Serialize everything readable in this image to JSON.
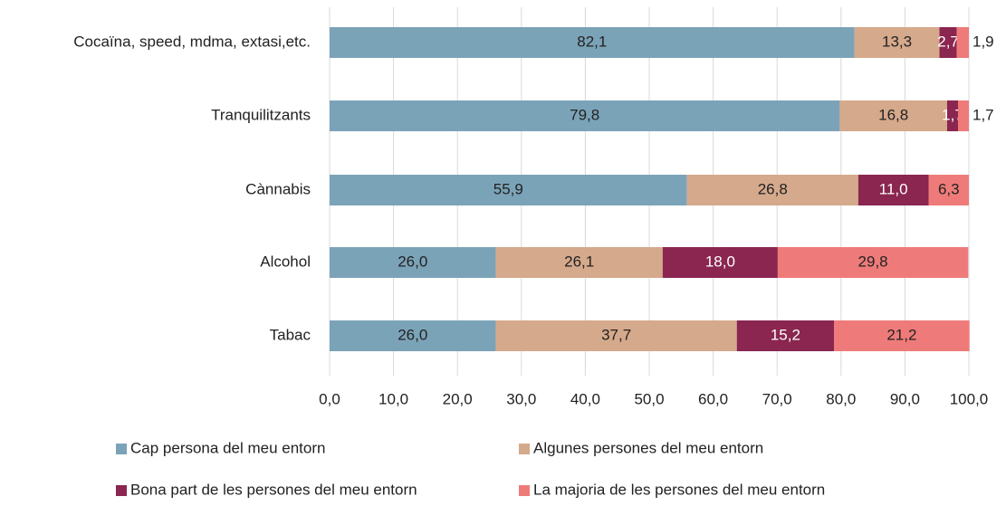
{
  "chart_data": {
    "type": "stacked_bar_horizontal",
    "categories": [
      "Cocaïna, speed, mdma, extasi,etc.",
      "Tranquilitzants",
      "Cànnabis",
      "Alcohol",
      "Tabac"
    ],
    "series": [
      {
        "name": "Cap persona del meu entorn",
        "color": "#7ba3b8",
        "values": [
          82.1,
          79.8,
          55.9,
          26.0,
          26.0
        ],
        "value_labels": [
          "82,1",
          "79,8",
          "55,9",
          "26,0",
          "26,0"
        ]
      },
      {
        "name": "Algunes persones del meu entorn",
        "color": "#d5a98b",
        "values": [
          13.3,
          16.8,
          26.8,
          26.1,
          37.7
        ],
        "value_labels": [
          "13,3",
          "16,8",
          "26,8",
          "26,1",
          "37,7"
        ]
      },
      {
        "name": "Bona part de les persones del meu entorn",
        "color": "#8a2650",
        "values": [
          2.7,
          1.7,
          11.0,
          18.0,
          15.2
        ],
        "value_labels": [
          "2,7",
          "1,7",
          "11,0",
          "18,0",
          "15,2"
        ]
      },
      {
        "name": "La majoria de les persones del meu entorn",
        "color": "#ee7b79",
        "values": [
          1.9,
          1.7,
          6.3,
          29.8,
          21.2
        ],
        "value_labels": [
          "1,9",
          "1,7",
          "6,3",
          "29,8",
          "21,2"
        ]
      }
    ],
    "xlim": [
      0,
      100
    ],
    "xticks": [
      {
        "value": 0,
        "label": "0,0"
      },
      {
        "value": 10,
        "label": "10,0"
      },
      {
        "value": 20,
        "label": "20,0"
      },
      {
        "value": 30,
        "label": "30,0"
      },
      {
        "value": 40,
        "label": "40,0"
      },
      {
        "value": 50,
        "label": "50,0"
      },
      {
        "value": 60,
        "label": "60,0"
      },
      {
        "value": 70,
        "label": "70,0"
      },
      {
        "value": 80,
        "label": "80,0"
      },
      {
        "value": 90,
        "label": "90,0"
      },
      {
        "value": 100,
        "label": "100,0"
      }
    ],
    "grid": true
  }
}
